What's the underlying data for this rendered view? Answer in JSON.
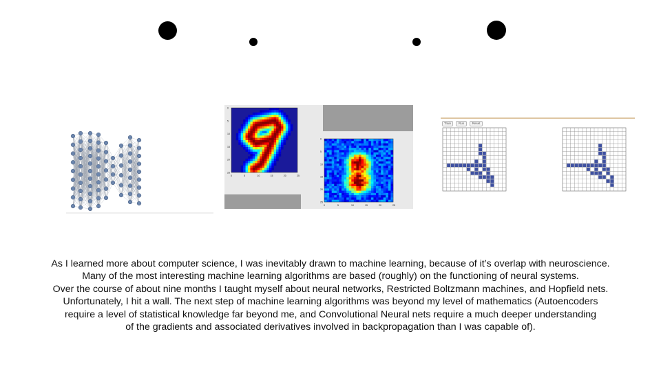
{
  "slide": {
    "caption_lines": [
      "As I learned more about computer science, I was inevitably drawn to machine learning, because of it’s overlap with neuroscience.",
      "Many of the most interesting machine learning algorithms are based (roughly) on the functioning of neural systems.",
      "Over the course of about nine months I taught myself about neural networks, Restricted Boltzmann machines, and Hopfield nets.",
      "Unfortunately, I hit a wall. The next step of machine learning algorithms was beyond my level of mathematics (Autoencoders",
      "require a level of statistical knowledge far beyond me, and Convolutional Neural nets require a much deeper understanding",
      "of the gradients and associated derivatives involved in backpropagation than I was capable of)."
    ]
  },
  "figures": {
    "heatmap": {
      "top_x_ticks": [
        "0",
        "5",
        "10",
        "15",
        "20",
        "25"
      ],
      "top_y_ticks": [
        "0",
        "5",
        "10",
        "15",
        "20",
        "25"
      ],
      "bottom_x_ticks": [
        "0",
        "5",
        "10",
        "15",
        "20",
        "25"
      ],
      "bottom_y_ticks": [
        "0",
        "5",
        "10",
        "15",
        "20",
        "25"
      ]
    },
    "hopfield": {
      "buttons": [
        "Train",
        "Run",
        "Reset"
      ],
      "accent_color": "#c9a36a",
      "cell_color": "#3f51a0"
    }
  }
}
